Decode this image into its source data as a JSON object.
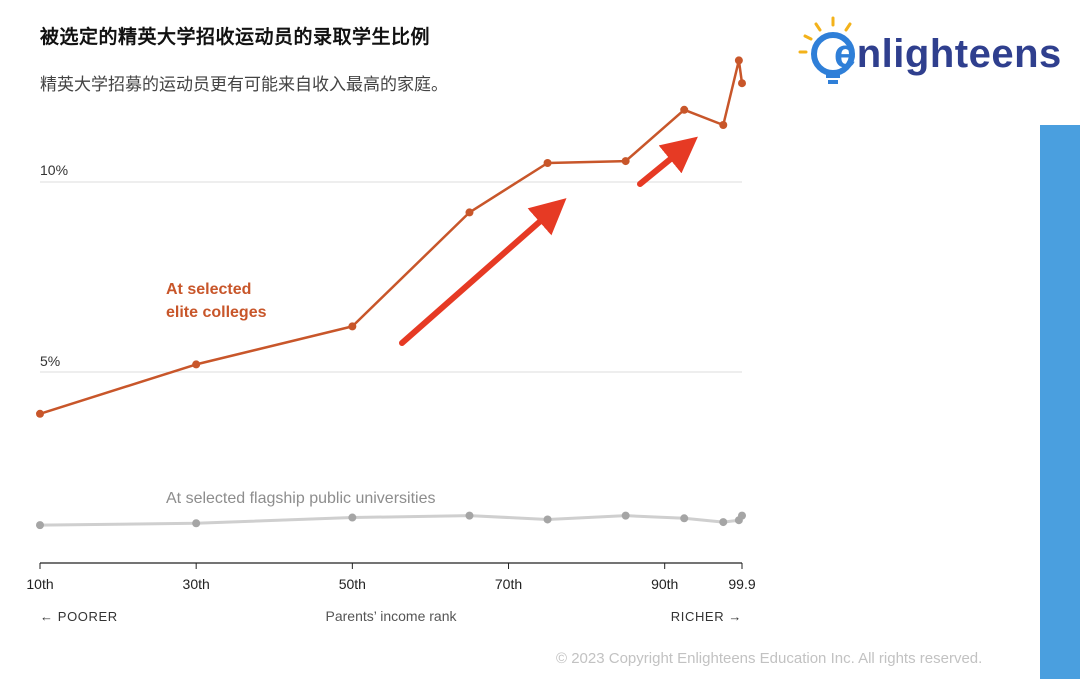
{
  "header": {
    "title": "被选定的精英大学招收运动员的录取学生比例",
    "subtitle": "精英大学招募的运动员更有可能来自收入最高的家庭。"
  },
  "logo": {
    "prefix": "e",
    "rest": "nlighteens",
    "icon": "lightbulb-icon"
  },
  "footer": {
    "copyright": "© 2023 Copyright Enlighteens Education Inc. All rights reserved."
  },
  "colors": {
    "elite": "#c8562a",
    "flagship": "#c9c9c9",
    "arrow": "#e63a24",
    "accent_bar": "#4a9fdf"
  },
  "chart_data": {
    "type": "line",
    "xlabel": "Parents’ income rank",
    "x_left_label": "← POORER",
    "x_right_label": "RICHER →",
    "x_ticks": [
      "10th",
      "30th",
      "50th",
      "70th",
      "90th",
      "99.9"
    ],
    "y_ticks": [
      "10%",
      "5%"
    ],
    "series": [
      {
        "name": "At selected elite colleges",
        "label_lines": [
          "At selected",
          "elite colleges"
        ],
        "points": [
          [
            10,
            3.9
          ],
          [
            30,
            5.2
          ],
          [
            50,
            6.2
          ],
          [
            65,
            9.2
          ],
          [
            75,
            10.5
          ],
          [
            85,
            10.55
          ],
          [
            92.5,
            11.9
          ],
          [
            97.5,
            11.5
          ],
          [
            99.5,
            13.2
          ],
          [
            99.9,
            12.6
          ]
        ]
      },
      {
        "name": "At selected flagship public universities",
        "label_lines": [
          "At selected flagship public universities"
        ],
        "points": [
          [
            10,
            0.97
          ],
          [
            30,
            1.02
          ],
          [
            50,
            1.17
          ],
          [
            65,
            1.22
          ],
          [
            75,
            1.12
          ],
          [
            85,
            1.22
          ],
          [
            92.5,
            1.15
          ],
          [
            97.5,
            1.05
          ],
          [
            99.5,
            1.1
          ],
          [
            99.9,
            1.22
          ]
        ]
      }
    ],
    "annotations": [
      "red-arrow-up-1",
      "red-arrow-up-2"
    ]
  }
}
